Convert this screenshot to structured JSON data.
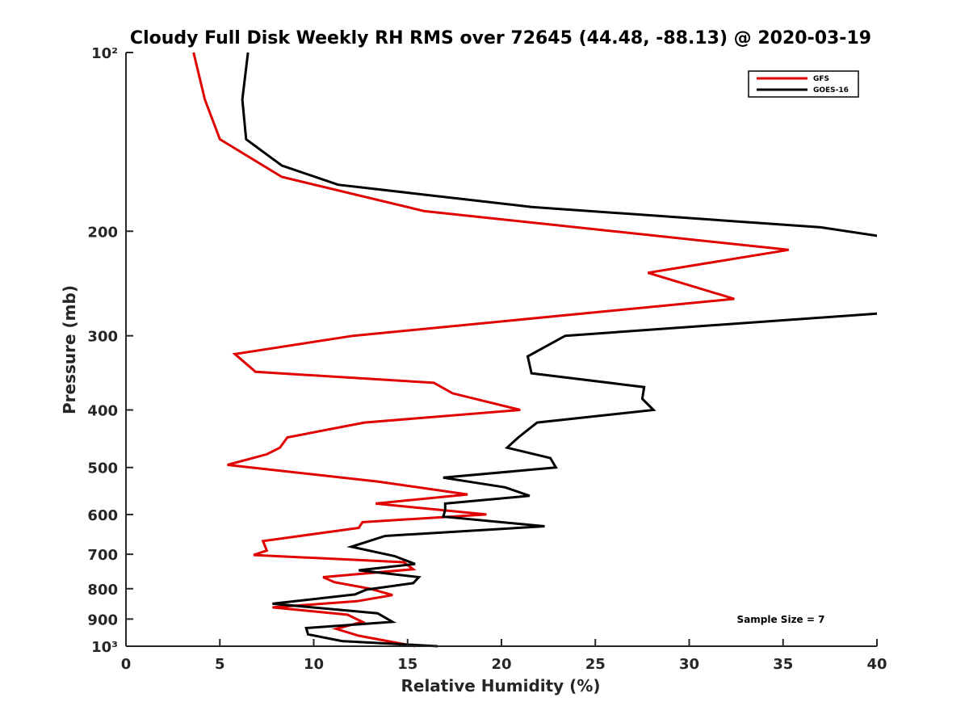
{
  "chart_data": {
    "type": "line",
    "title": "Cloudy Full Disk Weekly RH RMS over 72645 (44.48, -88.13) @ 2020-03-19",
    "xlabel": "Relative Humidity (%)",
    "ylabel": "Pressure (mb)",
    "xlim": [
      0,
      40
    ],
    "ylim": [
      100,
      1000
    ],
    "yscale": "log",
    "y_reversed": true,
    "xticks": [
      0,
      5,
      10,
      15,
      20,
      25,
      30,
      35,
      40
    ],
    "xtick_labels": [
      "0",
      "5",
      "10",
      "15",
      "20",
      "25",
      "30",
      "35",
      "40"
    ],
    "yticks": [
      100,
      200,
      300,
      400,
      500,
      600,
      700,
      800,
      900,
      1000
    ],
    "ytick_labels": [
      "10²",
      "200",
      "300",
      "400",
      "500",
      "600",
      "700",
      "800",
      "900",
      "10³"
    ],
    "grid": false,
    "legend_position": "top-right",
    "annotation": "Sample Size = 7",
    "series": [
      {
        "name": "GFS",
        "color": "#e00000",
        "x": [
          3.6,
          4.2,
          5.0,
          8.3,
          15.9,
          35.3,
          27.8,
          32.4,
          12.1,
          5.8,
          6.9,
          16.4,
          17.4,
          21.0,
          12.7,
          8.6,
          8.2,
          7.5,
          5.4,
          13.4,
          18.2,
          13.3,
          19.2,
          12.6,
          12.4,
          7.3,
          7.5,
          6.8,
          14.8,
          15.3,
          10.5,
          11.1,
          13.0,
          14.2,
          12.3,
          7.8,
          11.8,
          12.6,
          11.2,
          12.4,
          15.4
        ],
        "y": [
          100,
          120,
          140,
          162,
          185,
          215,
          235,
          260,
          300,
          322,
          345,
          360,
          375,
          400,
          420,
          445,
          463,
          475,
          495,
          528,
          555,
          575,
          600,
          618,
          632,
          665,
          690,
          702,
          722,
          742,
          765,
          780,
          800,
          820,
          840,
          860,
          885,
          910,
          935,
          960,
          1000
        ]
      },
      {
        "name": "GOES-16",
        "color": "#000000",
        "x": [
          6.5,
          6.2,
          6.4,
          8.3,
          11.3,
          21.6,
          37.0,
          40.2,
          40.2,
          40.2,
          23.4,
          21.4,
          21.6,
          27.6,
          27.5,
          28.1,
          21.9,
          20.9,
          20.3,
          22.6,
          22.9,
          16.9,
          20.2,
          21.5,
          17.0,
          17.0,
          16.9,
          22.3,
          13.8,
          12.0,
          14.3,
          15.4,
          12.4,
          15.6,
          15.3,
          12.8,
          12.2,
          7.8,
          13.4,
          14.2,
          9.6,
          9.7,
          11.5,
          16.6
        ],
        "y": [
          100,
          120,
          140,
          155,
          167,
          182,
          197,
          204,
          230,
          275,
          300,
          325,
          347,
          366,
          383,
          400,
          420,
          445,
          463,
          482,
          500,
          520,
          540,
          558,
          575,
          590,
          605,
          628,
          652,
          680,
          705,
          727,
          745,
          765,
          783,
          803,
          818,
          848,
          880,
          910,
          932,
          955,
          980,
          1000
        ]
      }
    ]
  }
}
